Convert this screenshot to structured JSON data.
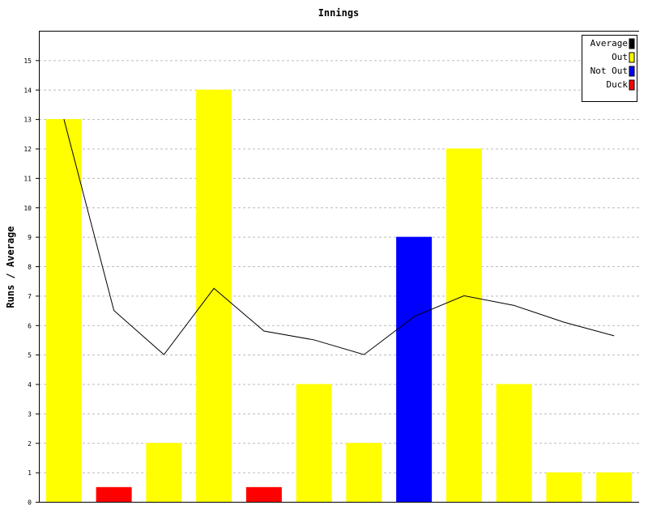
{
  "chart_data": {
    "type": "bar",
    "title": "Innings",
    "xlabel": "",
    "ylabel": "Runs / Average",
    "ylim": [
      0,
      16
    ],
    "yticks": [
      0,
      1,
      2,
      3,
      4,
      5,
      6,
      7,
      8,
      9,
      10,
      11,
      12,
      13,
      14,
      15
    ],
    "grid": "horizontal dashed",
    "legend_position": "top-right",
    "legend": [
      {
        "label": "Average",
        "color": "#000000"
      },
      {
        "label": "Out",
        "color": "#ffff00"
      },
      {
        "label": "Not Out",
        "color": "#0000ff"
      },
      {
        "label": "Duck",
        "color": "#ff0000"
      }
    ],
    "bars": [
      {
        "value": 13,
        "kind": "Out"
      },
      {
        "value": 0.5,
        "kind": "Duck"
      },
      {
        "value": 2,
        "kind": "Out"
      },
      {
        "value": 14,
        "kind": "Out"
      },
      {
        "value": 0.5,
        "kind": "Duck"
      },
      {
        "value": 4,
        "kind": "Out"
      },
      {
        "value": 2,
        "kind": "Out"
      },
      {
        "value": 9,
        "kind": "Not Out"
      },
      {
        "value": 12,
        "kind": "Out"
      },
      {
        "value": 4,
        "kind": "Out"
      },
      {
        "value": 1,
        "kind": "Out"
      },
      {
        "value": 1,
        "kind": "Out"
      }
    ],
    "series": [
      {
        "name": "Average",
        "values": [
          13,
          6.5,
          5,
          7.25,
          5.8,
          5.5,
          5,
          6.29,
          7,
          6.67,
          6.1,
          5.64
        ]
      }
    ]
  }
}
